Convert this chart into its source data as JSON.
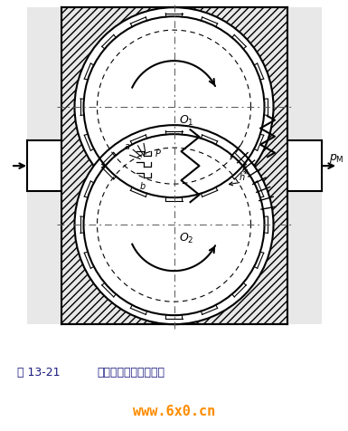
{
  "title_part1": "图 13-21",
  "title_part2": "齿轮马达的工作原理图",
  "watermark": "www.6x0.cn",
  "bg_color": "#ffffff",
  "line_color": "#000000",
  "title_color": "#1a1a80",
  "watermark_color": "#FF8C00",
  "hatch_color": "#888888"
}
